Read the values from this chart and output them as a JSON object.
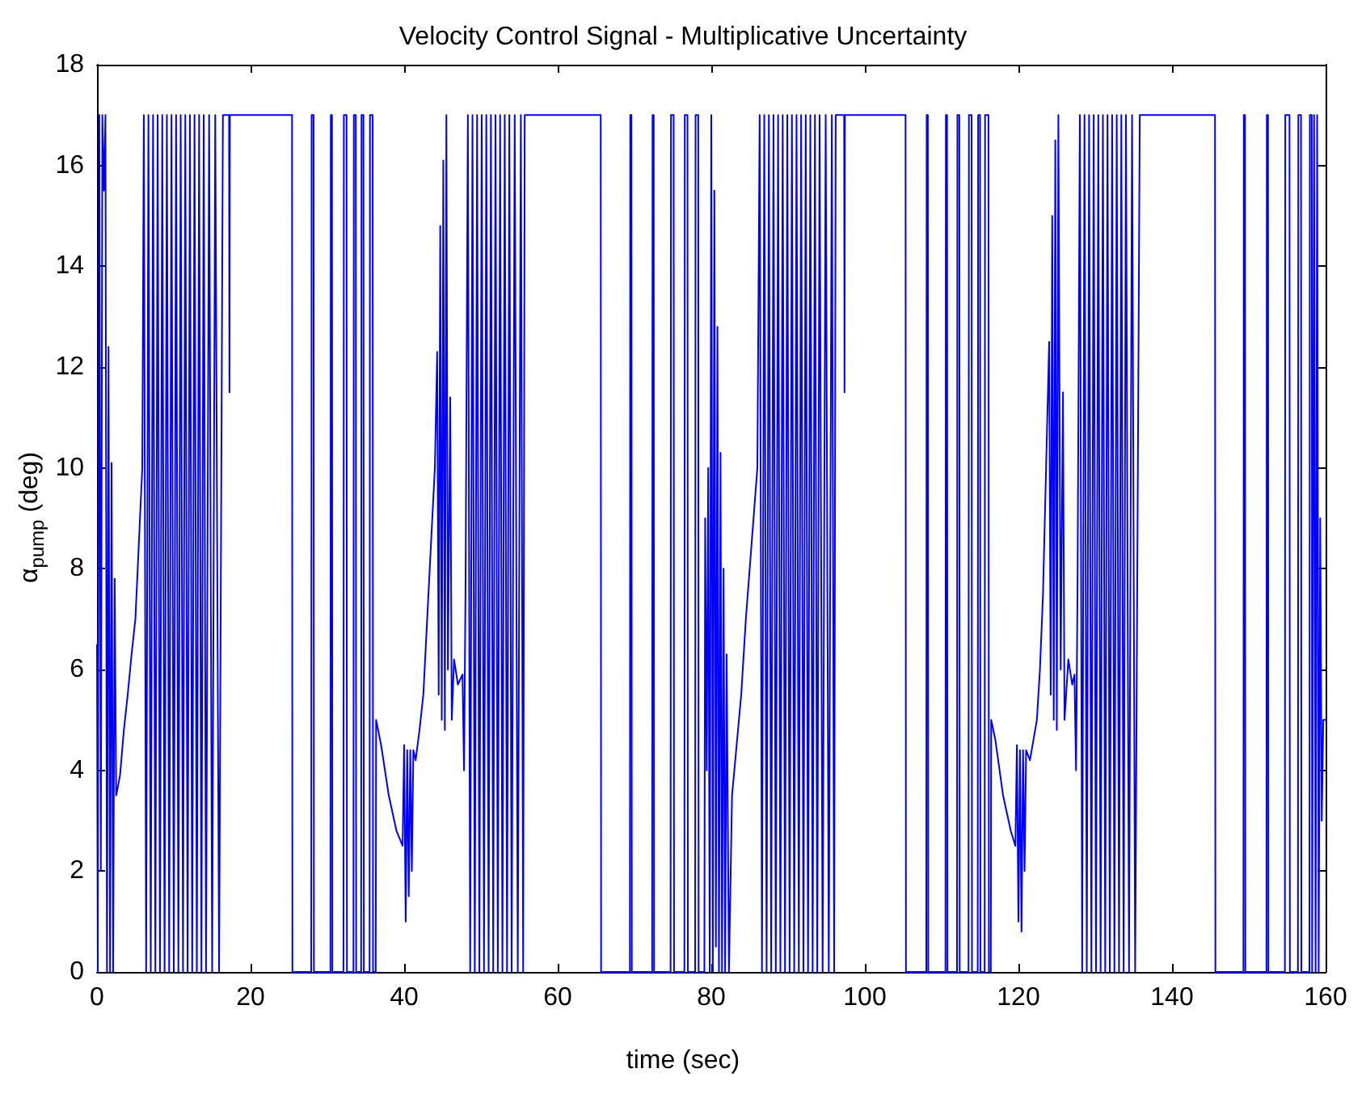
{
  "chart_data": {
    "type": "line",
    "title": "Velocity Control Signal - Multiplicative Uncertainty",
    "xlabel": "time (sec)",
    "ylabel": "α$_{pump}$ (deg)",
    "xlim": [
      0,
      160
    ],
    "xticks": [
      0,
      20,
      40,
      60,
      80,
      100,
      120,
      140,
      160
    ],
    "ylim": [
      0,
      18
    ],
    "yticks": [
      0,
      2,
      4,
      6,
      8,
      10,
      12,
      14,
      16,
      18
    ],
    "grid": false,
    "marker": "none",
    "line_style": "solid",
    "series": [
      {
        "color": "#0000ff",
        "x": [
          0,
          0.1,
          0.3,
          0.5,
          0.7,
          0.9,
          1.1,
          1.3,
          1.5,
          1.7,
          1.9,
          2.1,
          2.3,
          2.5,
          3,
          3.5,
          4,
          4.5,
          5,
          5.3,
          5.6,
          5.9,
          6.1,
          6.4,
          6.7,
          7.0,
          7.3,
          7.6,
          7.9,
          8.2,
          8.5,
          8.8,
          9.1,
          9.4,
          9.7,
          10.0,
          10.3,
          10.6,
          10.9,
          11.2,
          11.5,
          11.8,
          12.1,
          12.4,
          12.7,
          13.0,
          13.3,
          13.6,
          13.9,
          14.2,
          14.6,
          15.0,
          15.4,
          15.9,
          16.4,
          17.2,
          17.25,
          17.3,
          25.4,
          25.45,
          27.9,
          27.95,
          28.2,
          28.25,
          30.4,
          30.45,
          30.6,
          30.65,
          32.1,
          32.15,
          32.5,
          32.55,
          33.4,
          33.45,
          33.7,
          33.75,
          34.4,
          34.45,
          34.7,
          34.75,
          35.5,
          35.55,
          35.9,
          35.95,
          36.3,
          36.35,
          37,
          38,
          39,
          39.8,
          40,
          40.2,
          40.4,
          40.6,
          40.8,
          41,
          41.2,
          41.5,
          42,
          42.5,
          43,
          43.5,
          44,
          44.3,
          44.5,
          44.7,
          44.9,
          45.1,
          45.3,
          45.5,
          45.7,
          46,
          46.2,
          46.5,
          47,
          47.6,
          47.8,
          48,
          48.3,
          48.6,
          48.9,
          49.2,
          49.5,
          49.8,
          50.1,
          50.4,
          50.7,
          51,
          51.3,
          51.6,
          51.9,
          52.2,
          52.5,
          52.8,
          53.1,
          53.4,
          53.7,
          54,
          54.4,
          54.8,
          55.2,
          55.5,
          55.7,
          65.6,
          65.65,
          69.4,
          69.45,
          69.6,
          69.65,
          72.3,
          72.35,
          72.5,
          72.55,
          74.7,
          74.75,
          75.1,
          75.15,
          76.5,
          76.55,
          76.9,
          76.95,
          77.9,
          77.95,
          78.3,
          78.35,
          79.1,
          79.2,
          79.4,
          79.6,
          79.8,
          80,
          80.2,
          80.4,
          80.6,
          80.8,
          81,
          81.2,
          81.4,
          81.6,
          81.8,
          82,
          82.3,
          82.7,
          83.3,
          83.9,
          84.5,
          85,
          85.5,
          86,
          86.3,
          86.6,
          86.9,
          87.2,
          87.5,
          87.8,
          88.1,
          88.4,
          88.7,
          89,
          89.3,
          89.6,
          89.9,
          90.2,
          90.5,
          90.8,
          91.1,
          91.4,
          91.7,
          92,
          92.3,
          92.6,
          92.9,
          93.2,
          93.5,
          93.8,
          94.1,
          94.5,
          94.9,
          95.3,
          95.7,
          96,
          96.2,
          97.3,
          97.35,
          97.4,
          105.3,
          105.35,
          108,
          108.05,
          108.2,
          108.25,
          110.5,
          110.55,
          110.7,
          110.75,
          112,
          112.05,
          112.3,
          112.35,
          113.5,
          113.55,
          113.9,
          113.95,
          114.7,
          114.75,
          115,
          115.05,
          115.6,
          115.65,
          116.1,
          116.15,
          116.4,
          116.45,
          117,
          118,
          119,
          119.6,
          119.8,
          120,
          120.2,
          120.4,
          120.6,
          120.8,
          121,
          121.5,
          122.4,
          122.8,
          123.2,
          123.6,
          124,
          124.2,
          124.4,
          124.6,
          124.8,
          125,
          125.2,
          125.5,
          125.8,
          126,
          126.5,
          127,
          127.3,
          127.5,
          127.7,
          128,
          128.3,
          128.6,
          128.9,
          129.2,
          129.5,
          129.8,
          130.1,
          130.4,
          130.7,
          131,
          131.3,
          131.6,
          131.9,
          132.2,
          132.5,
          132.8,
          133.1,
          133.4,
          133.7,
          134,
          134.4,
          134.8,
          135.2,
          135.8,
          145.6,
          145.65,
          149.3,
          149.35,
          149.5,
          149.55,
          152.3,
          152.35,
          152.5,
          152.55,
          154.7,
          154.75,
          155.3,
          155.35,
          156.4,
          156.45,
          156.8,
          156.85,
          157.9,
          157.95,
          158.2,
          158.25,
          158.5,
          158.7,
          158.9,
          159.1,
          159.3,
          159.5,
          159.7,
          160
        ],
        "values": [
          6.5,
          0,
          17,
          2,
          17,
          15.5,
          17,
          0,
          12.4,
          0,
          10.1,
          0,
          7.8,
          3.5,
          3.9,
          4.8,
          5.5,
          6.3,
          7,
          8,
          9,
          10,
          17,
          0,
          17,
          0,
          17,
          0,
          17,
          0,
          17,
          0,
          17,
          0,
          17,
          0,
          17,
          0,
          17,
          0,
          17,
          0,
          17,
          0,
          17,
          0,
          17,
          0,
          17,
          0,
          17,
          0,
          17,
          0,
          17,
          17,
          11.5,
          17,
          17,
          0,
          0,
          17,
          17,
          0,
          0,
          17,
          17,
          0,
          0,
          17,
          17,
          0,
          0,
          17,
          17,
          0,
          0,
          17,
          17,
          0,
          0,
          17,
          17,
          0,
          0,
          5,
          4.5,
          3.5,
          2.8,
          2.5,
          4.5,
          1,
          4.4,
          1.5,
          4.4,
          2,
          4.4,
          4.2,
          4.8,
          5.5,
          7,
          8.5,
          10,
          12.3,
          5.5,
          14.8,
          5,
          16.1,
          4.8,
          17,
          6,
          11.4,
          5,
          6.2,
          5.7,
          5.9,
          4,
          7.7,
          17,
          0,
          17,
          0,
          17,
          0,
          17,
          0,
          17,
          0,
          17,
          0,
          17,
          0,
          17,
          0,
          17,
          0,
          17,
          0,
          17,
          0,
          17,
          0,
          17,
          17,
          0,
          0,
          17,
          17,
          0,
          0,
          17,
          17,
          0,
          0,
          17,
          17,
          0,
          0,
          17,
          17,
          0,
          0,
          17,
          17,
          0,
          0,
          9,
          4,
          10,
          0,
          17,
          0,
          15.5,
          0.5,
          12.8,
          0,
          10.3,
          0,
          8,
          0,
          6.3,
          0,
          3.5,
          4.5,
          5.5,
          7,
          8,
          9,
          10,
          17,
          0,
          17,
          0,
          17,
          0,
          17,
          0,
          17,
          0,
          17,
          0,
          17,
          0,
          17,
          0,
          17,
          0,
          17,
          0,
          17,
          0,
          17,
          0,
          17,
          0,
          17,
          0,
          17,
          0,
          17,
          0,
          17,
          17,
          11.5,
          17,
          17,
          0,
          0,
          17,
          17,
          0,
          0,
          17,
          17,
          0,
          0,
          17,
          17,
          0,
          0,
          17,
          17,
          0,
          0,
          17,
          17,
          0,
          0,
          17,
          17,
          0,
          0,
          5,
          4.6,
          3.5,
          2.8,
          2.5,
          4.5,
          1,
          4.4,
          0.8,
          4.4,
          2,
          4.4,
          4.2,
          5,
          6,
          7.5,
          10,
          12.5,
          5.5,
          15,
          5,
          16.5,
          4.8,
          17,
          6,
          11.5,
          5,
          6.2,
          5.7,
          5.9,
          4,
          7.7,
          17,
          0,
          17,
          0,
          17,
          0,
          17,
          0,
          17,
          0,
          17,
          0,
          17,
          0,
          17,
          0,
          17,
          0,
          17,
          0,
          17,
          0,
          17,
          0,
          17,
          17,
          0,
          0,
          17,
          17,
          0,
          0,
          17,
          17,
          0,
          0,
          17,
          17,
          0,
          0,
          17,
          17,
          0,
          0,
          17,
          17,
          0,
          17,
          0,
          17,
          0,
          9,
          3,
          5,
          5
        ]
      }
    ]
  }
}
